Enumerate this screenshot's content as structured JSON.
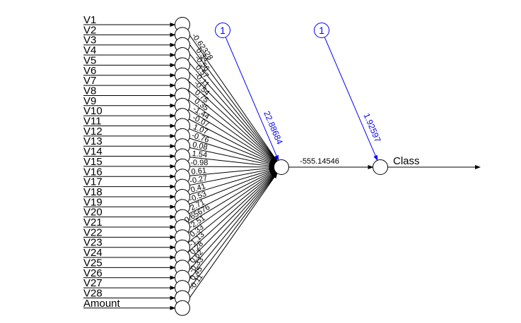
{
  "inputs": [
    "V1",
    "V2",
    "V3",
    "V4",
    "V5",
    "V6",
    "V7",
    "V8",
    "V9",
    "V10",
    "V11",
    "V12",
    "V13",
    "V14",
    "V15",
    "V16",
    "V17",
    "V18",
    "V19",
    "V20",
    "V21",
    "V22",
    "V23",
    "V24",
    "V25",
    "V26",
    "V27",
    "V28",
    "Amount"
  ],
  "input_weights": [
    "-0.62328",
    "0.34",
    "-0.56",
    "0.57",
    "-0.11",
    "-0.54",
    "0.75",
    "0.35",
    "-1.44",
    "-0.07",
    "1.07",
    "-0.76",
    "0.08",
    "1.54",
    "-0.98",
    "0.61",
    "-0.27",
    "0.41",
    "-0.53",
    "2.71",
    "0.65676",
    "-2.51",
    "0.33",
    "-1.13",
    "0.28",
    "0.62",
    "-0.33",
    "0.45",
    "-0.11"
  ],
  "hidden_output_weight": "-555.14546",
  "bias_labels": [
    "1",
    "1"
  ],
  "bias_weights": [
    "22.88684",
    "1.92597"
  ],
  "output_label": "Class",
  "colors": {
    "main": "#000000",
    "bias": "#0000ff"
  }
}
